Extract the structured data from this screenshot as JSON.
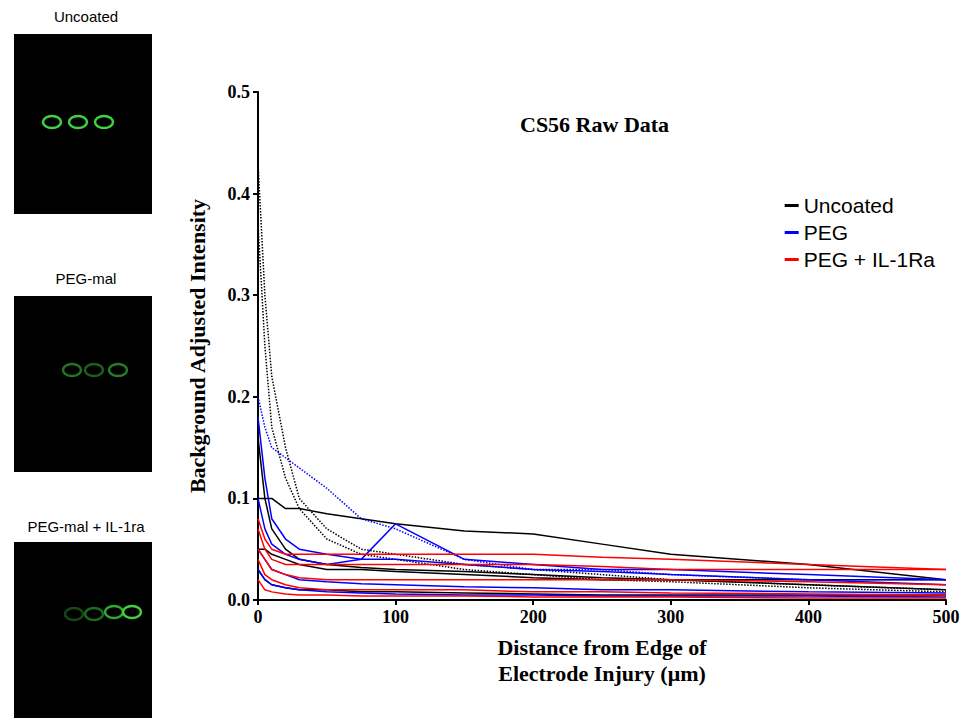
{
  "images": [
    {
      "label": "Uncoated"
    },
    {
      "label": "PEG-mal"
    },
    {
      "label": "PEG-mal + IL-1ra"
    }
  ],
  "chart_data": {
    "type": "line",
    "title": "CS56 Raw Data",
    "x_label": "Distance from Edge of Electrode Injury (μm)",
    "y_label": "Background Adjusted Intensity",
    "x": [
      0,
      5,
      10,
      20,
      30,
      50,
      75,
      100,
      150,
      200,
      250,
      300,
      400,
      500
    ],
    "series": [
      {
        "name": "Uncoated",
        "color": "#000000",
        "line_style": "dotted",
        "values": [
          0.43,
          0.3,
          0.22,
          0.15,
          0.1,
          0.07,
          0.05,
          0.045,
          0.035,
          0.03,
          0.025,
          0.02,
          0.015,
          0.01
        ]
      },
      {
        "name": "Uncoated",
        "color": "#000000",
        "line_style": "dotted",
        "values": [
          0.37,
          0.25,
          0.17,
          0.12,
          0.09,
          0.06,
          0.045,
          0.04,
          0.03,
          0.025,
          0.02,
          0.018,
          0.012,
          0.008
        ]
      },
      {
        "name": "Uncoated",
        "color": "#000000",
        "line_style": "solid",
        "values": [
          0.16,
          0.1,
          0.07,
          0.05,
          0.04,
          0.035,
          0.032,
          0.03,
          0.028,
          0.025,
          0.022,
          0.02,
          0.015,
          0.01
        ]
      },
      {
        "name": "Uncoated",
        "color": "#000000",
        "line_style": "solid",
        "values": [
          0.1,
          0.1,
          0.1,
          0.09,
          0.09,
          0.085,
          0.08,
          0.075,
          0.068,
          0.065,
          0.055,
          0.045,
          0.035,
          0.02
        ]
      },
      {
        "name": "Uncoated",
        "color": "#000000",
        "line_style": "solid",
        "values": [
          0.05,
          0.05,
          0.045,
          0.04,
          0.035,
          0.03,
          0.03,
          0.028,
          0.025,
          0.022,
          0.02,
          0.02,
          0.02,
          0.02
        ]
      },
      {
        "name": "Uncoated",
        "color": "#000000",
        "line_style": "solid",
        "values": [
          0.03,
          0.02,
          0.015,
          0.012,
          0.01,
          0.01,
          0.008,
          0.008,
          0.007,
          0.006,
          0.005,
          0.005,
          0.005,
          0.005
        ]
      },
      {
        "name": "PEG",
        "color": "#0000ff",
        "line_style": "dotted",
        "values": [
          0.2,
          0.17,
          0.15,
          0.14,
          0.13,
          0.11,
          0.08,
          0.07,
          0.04,
          0.03,
          0.03,
          0.025,
          0.02,
          0.02
        ]
      },
      {
        "name": "PEG",
        "color": "#0000ff",
        "line_style": "solid",
        "values": [
          0.18,
          0.12,
          0.08,
          0.06,
          0.05,
          0.045,
          0.04,
          0.04,
          0.035,
          0.03,
          0.028,
          0.025,
          0.02,
          0.015
        ]
      },
      {
        "name": "PEG",
        "color": "#0000ff",
        "line_style": "solid",
        "values": [
          0.1,
          0.07,
          0.055,
          0.045,
          0.04,
          0.035,
          0.04,
          0.075,
          0.04,
          0.035,
          0.03,
          0.03,
          0.025,
          0.02
        ]
      },
      {
        "name": "PEG",
        "color": "#0000ff",
        "line_style": "solid",
        "values": [
          0.05,
          0.04,
          0.03,
          0.025,
          0.02,
          0.018,
          0.016,
          0.015,
          0.013,
          0.012,
          0.01,
          0.01,
          0.008,
          0.007
        ]
      },
      {
        "name": "PEG",
        "color": "#0000ff",
        "line_style": "solid",
        "values": [
          0.03,
          0.02,
          0.015,
          0.012,
          0.01,
          0.008,
          0.007,
          0.006,
          0.005,
          0.005,
          0.004,
          0.004,
          0.004,
          0.003
        ]
      },
      {
        "name": "PEG + IL-1Ra",
        "color": "#ff0000",
        "line_style": "solid",
        "values": [
          0.08,
          0.06,
          0.05,
          0.045,
          0.045,
          0.045,
          0.045,
          0.045,
          0.045,
          0.045,
          0.042,
          0.04,
          0.035,
          0.03
        ]
      },
      {
        "name": "PEG + IL-1Ra",
        "color": "#ff0000",
        "line_style": "solid",
        "values": [
          0.07,
          0.05,
          0.04,
          0.035,
          0.035,
          0.035,
          0.035,
          0.035,
          0.035,
          0.035,
          0.033,
          0.03,
          0.03,
          0.03
        ]
      },
      {
        "name": "PEG + IL-1Ra",
        "color": "#ff0000",
        "line_style": "solid",
        "values": [
          0.05,
          0.04,
          0.03,
          0.025,
          0.022,
          0.02,
          0.02,
          0.02,
          0.02,
          0.02,
          0.02,
          0.02,
          0.018,
          0.015
        ]
      },
      {
        "name": "PEG + IL-1Ra",
        "color": "#ff0000",
        "line_style": "solid",
        "values": [
          0.04,
          0.025,
          0.02,
          0.015,
          0.012,
          0.01,
          0.01,
          0.01,
          0.01,
          0.008,
          0.008,
          0.007,
          0.006,
          0.005
        ]
      },
      {
        "name": "PEG + IL-1Ra",
        "color": "#ff0000",
        "line_style": "solid",
        "values": [
          0.02,
          0.01,
          0.008,
          0.006,
          0.005,
          0.005,
          0.004,
          0.004,
          0.004,
          0.003,
          0.003,
          0.003,
          0.002,
          0.002
        ]
      }
    ],
    "xlim": [
      0,
      500
    ],
    "xticks": [
      0,
      100,
      200,
      300,
      400,
      500
    ],
    "ylim": [
      0,
      0.5
    ],
    "yticks": [
      {
        "value": 0,
        "label": "0.0"
      },
      0.1,
      0.2,
      0.3,
      0.4,
      0.5
    ],
    "grid": false,
    "legend": "upper right"
  }
}
